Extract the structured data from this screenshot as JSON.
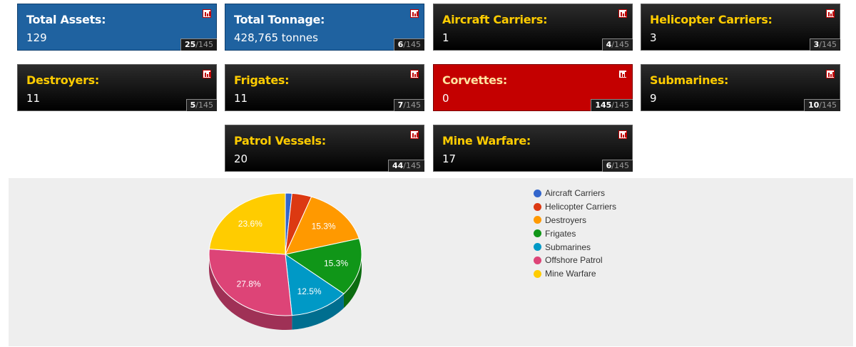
{
  "cards": [
    {
      "title": "Total Assets:",
      "value": "129",
      "rank": "25",
      "rank_total": "/145",
      "style": "blue"
    },
    {
      "title": "Total Tonnage:",
      "value": "428,765 tonnes",
      "rank": "6",
      "rank_total": "/145",
      "style": "blue"
    },
    {
      "title": "Aircraft Carriers:",
      "value": "1",
      "rank": "4",
      "rank_total": "/145",
      "style": "dark"
    },
    {
      "title": "Helicopter Carriers:",
      "value": "3",
      "rank": "3",
      "rank_total": "/145",
      "style": "dark"
    },
    {
      "title": "Destroyers:",
      "value": "11",
      "rank": "5",
      "rank_total": "/145",
      "style": "dark"
    },
    {
      "title": "Frigates:",
      "value": "11",
      "rank": "7",
      "rank_total": "/145",
      "style": "dark"
    },
    {
      "title": "Corvettes:",
      "value": "0",
      "rank": "145",
      "rank_total": "/145",
      "style": "red"
    },
    {
      "title": "Submarines:",
      "value": "9",
      "rank": "10",
      "rank_total": "/145",
      "style": "dark"
    },
    {
      "title": "Patrol Vessels:",
      "value": "20",
      "rank": "44",
      "rank_total": "/145",
      "style": "dark"
    },
    {
      "title": "Mine Warfare:",
      "value": "17",
      "rank": "6",
      "rank_total": "/145",
      "style": "dark"
    }
  ],
  "icon": "bar-chart-icon",
  "chart_data": {
    "type": "pie",
    "title": "",
    "legend_position": "right",
    "labels": [
      "Aircraft Carriers",
      "Helicopter Carriers",
      "Destroyers",
      "Frigates",
      "Submarines",
      "Offshore Patrol",
      "Mine Warfare"
    ],
    "values": [
      1,
      3,
      11,
      11,
      9,
      20,
      17
    ],
    "data_labels": [
      "",
      "",
      "15.3%",
      "15.3%",
      "12.5%",
      "27.8%",
      "23.6%"
    ],
    "colors": [
      "#3366cc",
      "#dc3912",
      "#ff9900",
      "#109618",
      "#0099c6",
      "#dd4477",
      "#ffcc00"
    ]
  }
}
